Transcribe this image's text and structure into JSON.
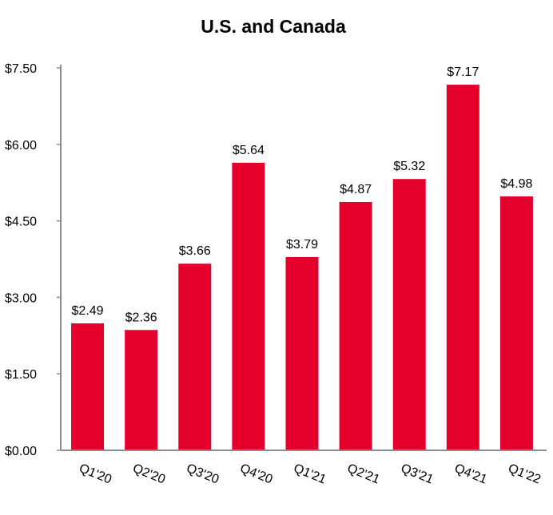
{
  "chart_data": {
    "type": "bar",
    "title": "U.S. and Canada",
    "xlabel": "",
    "ylabel": "",
    "categories": [
      "Q1'20",
      "Q2'20",
      "Q3'20",
      "Q4'20",
      "Q1'21",
      "Q2'21",
      "Q3'21",
      "Q4'21",
      "Q1'22"
    ],
    "values": [
      2.49,
      2.36,
      3.66,
      5.64,
      3.79,
      4.87,
      5.32,
      7.17,
      4.98
    ],
    "value_labels": [
      "$2.49",
      "$2.36",
      "$3.66",
      "$5.64",
      "$3.79",
      "$4.87",
      "$5.32",
      "$7.17",
      "$4.98"
    ],
    "ylim": [
      0,
      7.5
    ],
    "yticks": [
      0,
      1.5,
      3,
      4.5,
      6,
      7.5
    ],
    "ytick_labels": [
      "$0.00",
      "$1.50",
      "$3.00",
      "$4.50",
      "$6.00",
      "$7.50"
    ],
    "grid": false,
    "bar_color": "#e4002b",
    "axis_color": "#8c8c8c",
    "text_color": "#000000"
  }
}
